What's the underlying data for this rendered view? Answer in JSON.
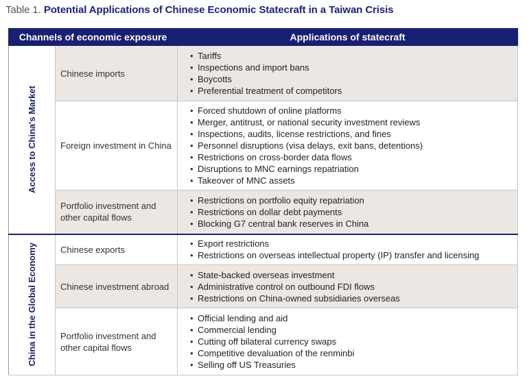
{
  "caption": {
    "label": "Table 1.",
    "title": "Potential Applications of Chinese Economic Statecraft in a Taiwan Crisis"
  },
  "headers": {
    "channels": "Channels of economic exposure",
    "applications": "Applications of statecraft"
  },
  "groups": [
    {
      "label": "Access to China's Market",
      "rows": [
        {
          "channel": "Chinese imports",
          "applications": [
            "Tariffs",
            "Inspections and import bans",
            "Boycotts",
            "Preferential treatment of competitors"
          ]
        },
        {
          "channel": "Foreign investment in China",
          "applications": [
            "Forced shutdown of online platforms",
            "Merger, antitrust, or national security investment reviews",
            "Inspections, audits, license restrictions, and fines",
            "Personnel disruptions (visa delays, exit bans, detentions)",
            "Restrictions on cross-border data flows",
            "Disruptions to MNC earnings repatriation",
            "Takeover of MNC assets"
          ]
        },
        {
          "channel": "Portfolio investment and other capital flows",
          "applications": [
            "Restrictions on portfolio equity repatriation",
            "Restrictions on dollar debt payments",
            "Blocking G7 central bank reserves in China"
          ]
        }
      ]
    },
    {
      "label": "China in the Global Economy",
      "rows": [
        {
          "channel": "Chinese exports",
          "applications": [
            "Export restrictions",
            "Restrictions on overseas intellectual property (IP) transfer and licensing"
          ]
        },
        {
          "channel": "Chinese investment abroad",
          "applications": [
            "State-backed overseas investment",
            "Administrative control on outbound FDI flows",
            "Restrictions on China-owned subsidiaries overseas"
          ]
        },
        {
          "channel": "Portfolio investment and other capital flows",
          "applications": [
            "Official lending and aid",
            "Commercial lending",
            "Cutting off bilateral currency swaps",
            "Competitive devaluation of the renminbi",
            "Selling off US Treasuries"
          ]
        }
      ]
    }
  ]
}
